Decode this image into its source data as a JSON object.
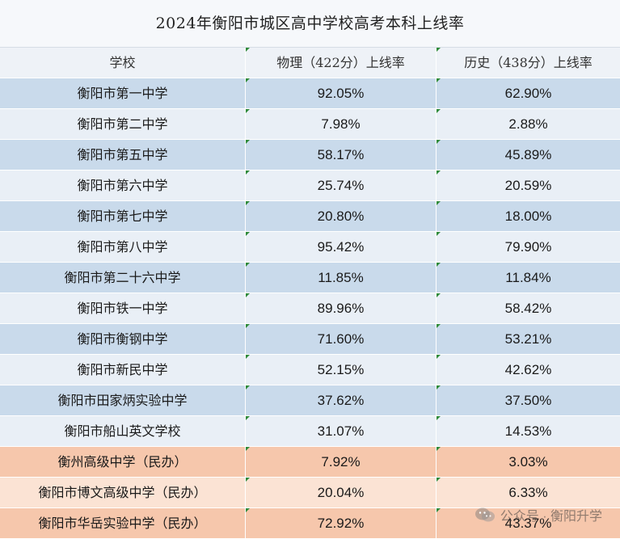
{
  "title": "2024年衡阳市城区高中学校高考本科上线率",
  "headers": [
    "学校",
    "物理（422分）上线率",
    "历史（438分）上线率"
  ],
  "rows": [
    {
      "school": "衡阳市第一中学",
      "physics": "92.05%",
      "history": "62.90%",
      "tone": "blue-a"
    },
    {
      "school": "衡阳市第二中学",
      "physics": "7.98%",
      "history": "2.88%",
      "tone": "blue-b"
    },
    {
      "school": "衡阳市第五中学",
      "physics": "58.17%",
      "history": "45.89%",
      "tone": "blue-a"
    },
    {
      "school": "衡阳市第六中学",
      "physics": "25.74%",
      "history": "20.59%",
      "tone": "blue-b"
    },
    {
      "school": "衡阳市第七中学",
      "physics": "20.80%",
      "history": "18.00%",
      "tone": "blue-a"
    },
    {
      "school": "衡阳市第八中学",
      "physics": "95.42%",
      "history": "79.90%",
      "tone": "blue-b"
    },
    {
      "school": "衡阳市第二十六中学",
      "physics": "11.85%",
      "history": "11.84%",
      "tone": "blue-a"
    },
    {
      "school": "衡阳市铁一中学",
      "physics": "89.96%",
      "history": "58.42%",
      "tone": "blue-b"
    },
    {
      "school": "衡阳市衡钢中学",
      "physics": "71.60%",
      "history": "53.21%",
      "tone": "blue-a"
    },
    {
      "school": "衡阳市新民中学",
      "physics": "52.15%",
      "history": "42.62%",
      "tone": "blue-b"
    },
    {
      "school": "衡阳市田家炳实验中学",
      "physics": "37.62%",
      "history": "37.50%",
      "tone": "blue-a"
    },
    {
      "school": "衡阳市船山英文学校",
      "physics": "31.07%",
      "history": "14.53%",
      "tone": "blue-b"
    },
    {
      "school": "衡州高级中学（民办）",
      "physics": "7.92%",
      "history": "3.03%",
      "tone": "orange-a"
    },
    {
      "school": "衡阳市博文高级中学（民办）",
      "physics": "20.04%",
      "history": "6.33%",
      "tone": "orange-b"
    },
    {
      "school": "衡阳市华岳实验中学（民办）",
      "physics": "72.92%",
      "history": "43.37%",
      "tone": "orange-a"
    }
  ],
  "watermark": {
    "text": "公众号 · 衡阳升学",
    "icon": "wechat-icon"
  }
}
